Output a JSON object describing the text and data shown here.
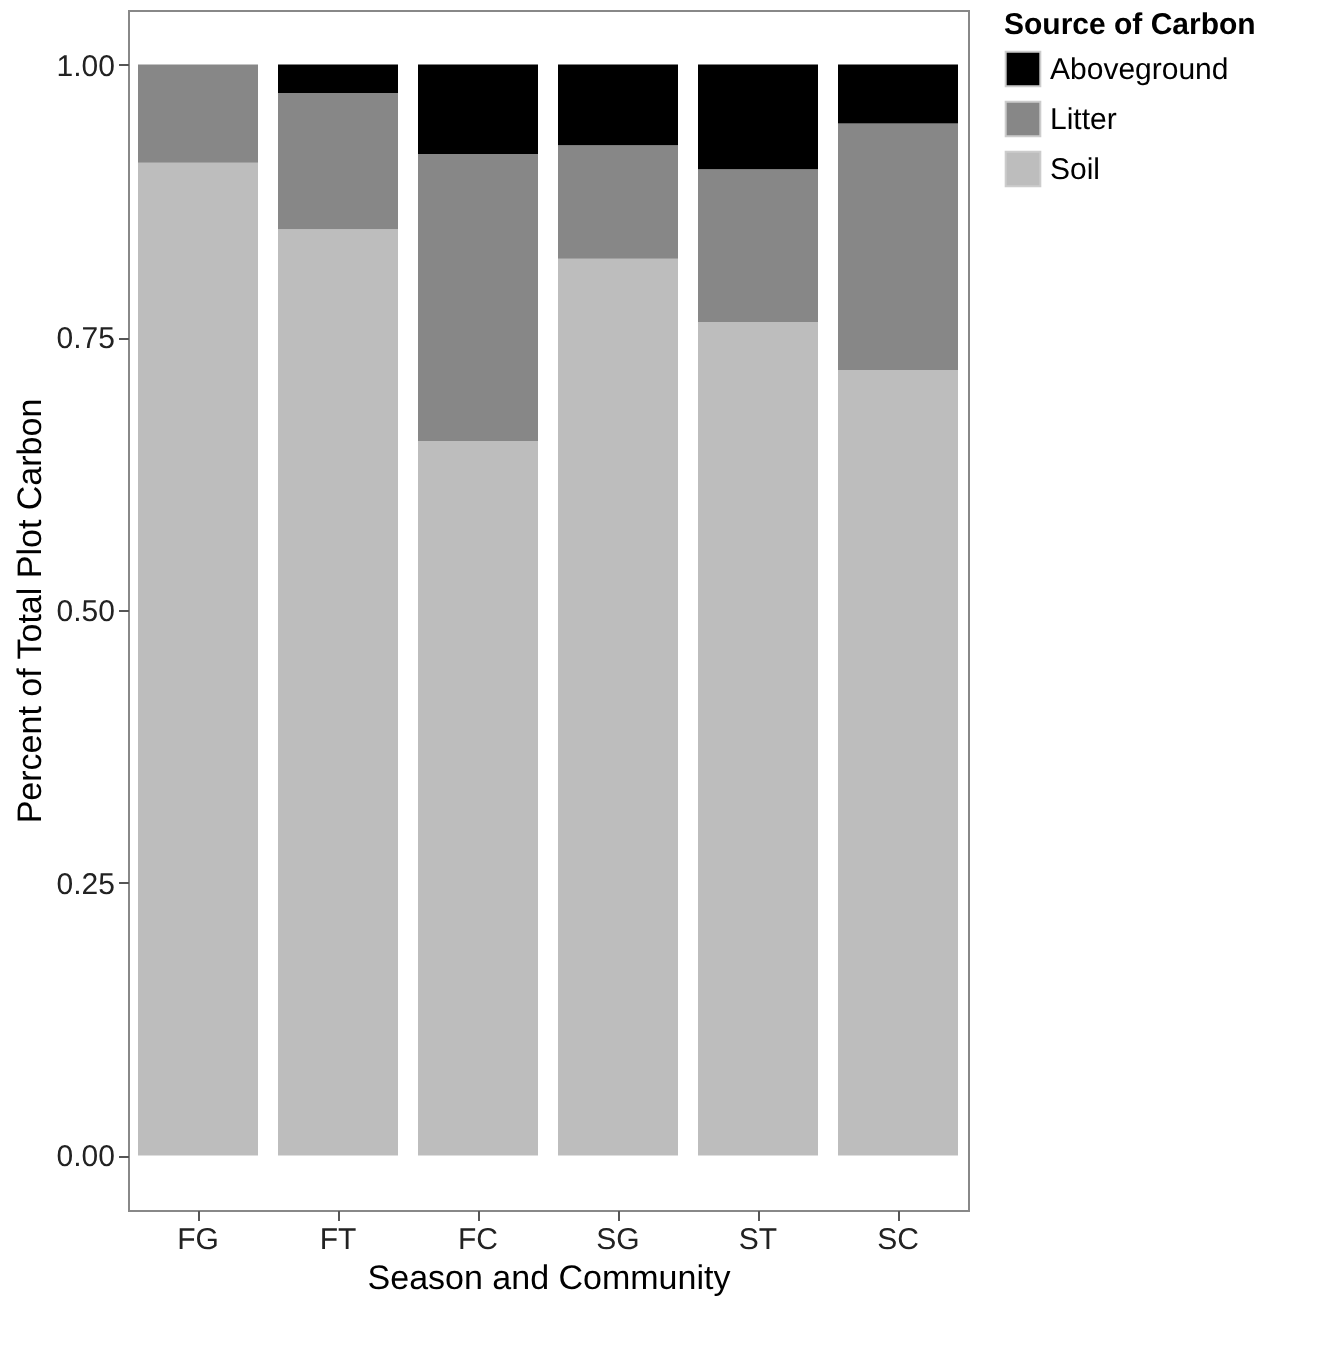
{
  "chart_data": {
    "type": "bar",
    "stacked": true,
    "xlabel": "Season and Community",
    "ylabel": "Percent of Total Plot Carbon",
    "legend_title": "Source of Carbon",
    "categories": [
      "FG",
      "FT",
      "FC",
      "SG",
      "ST",
      "SC"
    ],
    "series": [
      {
        "name": "Soil",
        "color": "#bdbdbd",
        "values": [
          0.91,
          0.849,
          0.655,
          0.822,
          0.764,
          0.72
        ]
      },
      {
        "name": "Litter",
        "color": "#878787",
        "values": [
          0.09,
          0.125,
          0.263,
          0.104,
          0.14,
          0.226
        ]
      },
      {
        "name": "Aboveground",
        "color": "#000000",
        "values": [
          0,
          0.026,
          0.082,
          0.074,
          0.096,
          0.054
        ]
      }
    ],
    "ylim": [
      -0.05,
      1.05
    ],
    "yticks": [
      {
        "value": 0,
        "label": "0.00"
      },
      {
        "value": 0.25,
        "label": "0.25"
      },
      {
        "value": 0.5,
        "label": "0.50"
      },
      {
        "value": 0.75,
        "label": "0.75"
      },
      {
        "value": 1,
        "label": "1.00"
      }
    ],
    "grid": false,
    "legend": "right"
  }
}
